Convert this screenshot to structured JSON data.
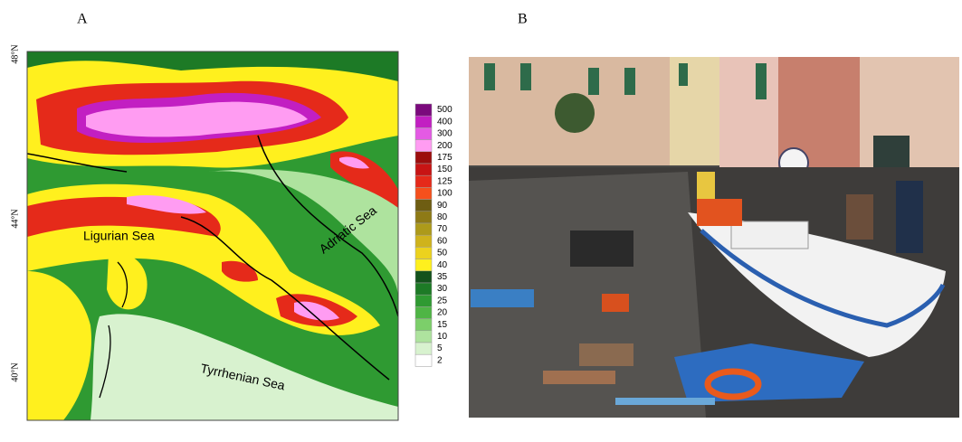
{
  "panels": [
    {
      "label": "A",
      "map": {
        "lat_labels": [
          "48°N",
          "44°N",
          "40°N"
        ],
        "place_labels": [
          "Ligurian Sea",
          "Adriatic Sea",
          "Tyrrhenian Sea"
        ]
      },
      "legend": {
        "levels": [
          {
            "label": 500,
            "color": "#7b0a7d"
          },
          {
            "label": 400,
            "color": "#c21fc2"
          },
          {
            "label": 300,
            "color": "#e45ae4"
          },
          {
            "label": 200,
            "color": "#ff9cf2"
          },
          {
            "label": 175,
            "color": "#9c0d0d"
          },
          {
            "label": 150,
            "color": "#c81414"
          },
          {
            "label": 125,
            "color": "#e52a1a"
          },
          {
            "label": 100,
            "color": "#f5501c"
          },
          {
            "label": 90,
            "color": "#6e5d12"
          },
          {
            "label": 80,
            "color": "#8e7a16"
          },
          {
            "label": 70,
            "color": "#ad9a1a"
          },
          {
            "label": 60,
            "color": "#cfb31c"
          },
          {
            "label": 50,
            "color": "#ecd21e"
          },
          {
            "label": 40,
            "color": "#fff01e"
          },
          {
            "label": 35,
            "color": "#13521c"
          },
          {
            "label": 30,
            "color": "#1d7a26"
          },
          {
            "label": 25,
            "color": "#2f9a32"
          },
          {
            "label": 20,
            "color": "#4fb545"
          },
          {
            "label": 15,
            "color": "#7ccf6a"
          },
          {
            "label": 10,
            "color": "#aee39e"
          },
          {
            "label": 5,
            "color": "#d8f2cf"
          },
          {
            "label": 2,
            "color": "#ffffff"
          }
        ]
      }
    },
    {
      "label": "B"
    }
  ]
}
